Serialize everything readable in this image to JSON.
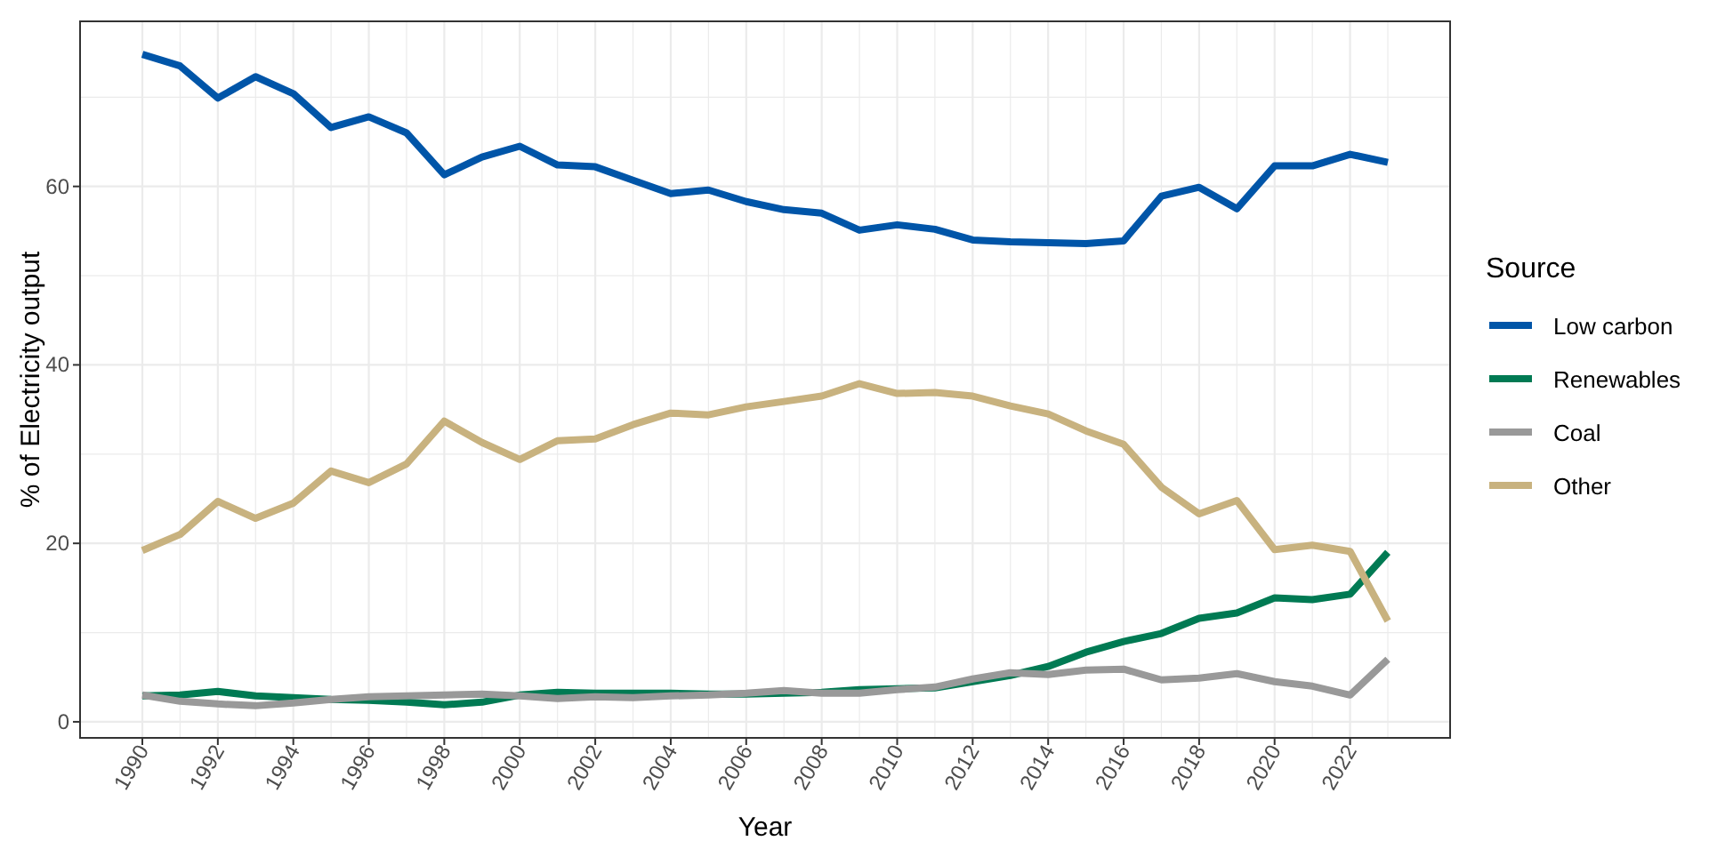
{
  "chart_data": {
    "type": "line",
    "xlabel": "Year",
    "ylabel": "% of Electricity output",
    "legend_title": "Source",
    "legend": "right",
    "grid": true,
    "x": [
      1990,
      1991,
      1992,
      1993,
      1994,
      1995,
      1996,
      1997,
      1998,
      1999,
      2000,
      2001,
      2002,
      2003,
      2004,
      2005,
      2006,
      2007,
      2008,
      2009,
      2010,
      2011,
      2012,
      2013,
      2014,
      2015,
      2016,
      2017,
      2018,
      2019,
      2020,
      2021,
      2022,
      2023
    ],
    "xlim": [
      1988.35,
      2024.65
    ],
    "xticks": [
      1990,
      1992,
      1994,
      1996,
      1998,
      2000,
      2002,
      2004,
      2006,
      2008,
      2010,
      2012,
      2014,
      2016,
      2018,
      2020,
      2022
    ],
    "ylim": [
      -1.8,
      78.5
    ],
    "yticks": [
      0,
      20,
      40,
      60
    ],
    "series": [
      {
        "name": "Low carbon",
        "color": "#0055a8",
        "values": [
          74.8,
          73.5,
          69.9,
          72.3,
          70.4,
          66.6,
          67.8,
          66.0,
          61.3,
          63.3,
          64.5,
          62.4,
          62.2,
          60.7,
          59.2,
          59.6,
          58.3,
          57.4,
          57.0,
          55.1,
          55.7,
          55.2,
          54.0,
          53.8,
          53.7,
          53.6,
          53.9,
          58.9,
          59.9,
          57.5,
          62.3,
          62.3,
          63.6,
          62.7
        ]
      },
      {
        "name": "Renewables",
        "color": "#007a53",
        "values": [
          2.9,
          3.0,
          3.4,
          2.9,
          2.7,
          2.5,
          2.4,
          2.2,
          1.9,
          2.2,
          3.0,
          3.3,
          3.2,
          3.2,
          3.2,
          3.1,
          3.1,
          3.2,
          3.3,
          3.6,
          3.7,
          3.8,
          4.5,
          5.2,
          6.2,
          7.8,
          9.0,
          9.9,
          11.6,
          12.2,
          13.9,
          13.7,
          14.3,
          19.0
        ]
      },
      {
        "name": "Coal",
        "color": "#999999",
        "values": [
          3.0,
          2.3,
          2.0,
          1.8,
          2.1,
          2.5,
          2.8,
          2.9,
          3.0,
          3.1,
          2.9,
          2.6,
          2.8,
          2.7,
          2.9,
          3.0,
          3.2,
          3.5,
          3.2,
          3.2,
          3.6,
          3.9,
          4.8,
          5.5,
          5.3,
          5.8,
          5.9,
          4.7,
          4.9,
          5.4,
          4.5,
          4.0,
          3.0,
          7.0
        ]
      },
      {
        "name": "Other",
        "color": "#c8b27f",
        "values": [
          19.2,
          21.0,
          24.7,
          22.8,
          24.5,
          28.1,
          26.8,
          28.9,
          33.7,
          31.3,
          29.4,
          31.5,
          31.7,
          33.3,
          34.6,
          34.4,
          35.3,
          35.9,
          36.5,
          37.9,
          36.8,
          36.9,
          36.5,
          35.4,
          34.5,
          32.6,
          31.1,
          26.3,
          23.3,
          24.8,
          19.3,
          19.8,
          19.1,
          11.3
        ]
      }
    ]
  }
}
